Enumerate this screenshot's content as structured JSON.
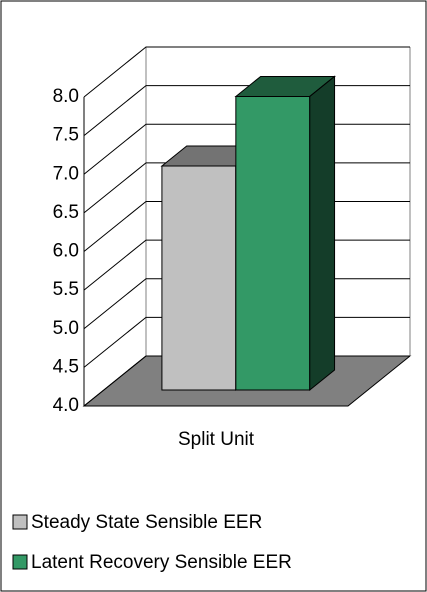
{
  "chart_data": {
    "type": "bar3d",
    "categories": [
      "Split Unit"
    ],
    "series": [
      {
        "name": "Steady State Sensible EER",
        "color": "#c0c0c0",
        "values": [
          6.9
        ]
      },
      {
        "name": "Latent Recovery Sensible EER",
        "color": "#339966",
        "values": [
          7.8
        ]
      }
    ],
    "ylim": [
      4,
      8
    ],
    "yticks": [
      {
        "value": 4,
        "label": "4.0"
      },
      4.5,
      {
        "value": 5,
        "label": "5.0"
      },
      5.5,
      {
        "value": 6,
        "label": "6.0"
      },
      6.5,
      {
        "value": 7,
        "label": "7.0"
      },
      7.5,
      {
        "value": 8,
        "label": "8.0"
      }
    ],
    "grid": true,
    "legend": "bottom"
  }
}
